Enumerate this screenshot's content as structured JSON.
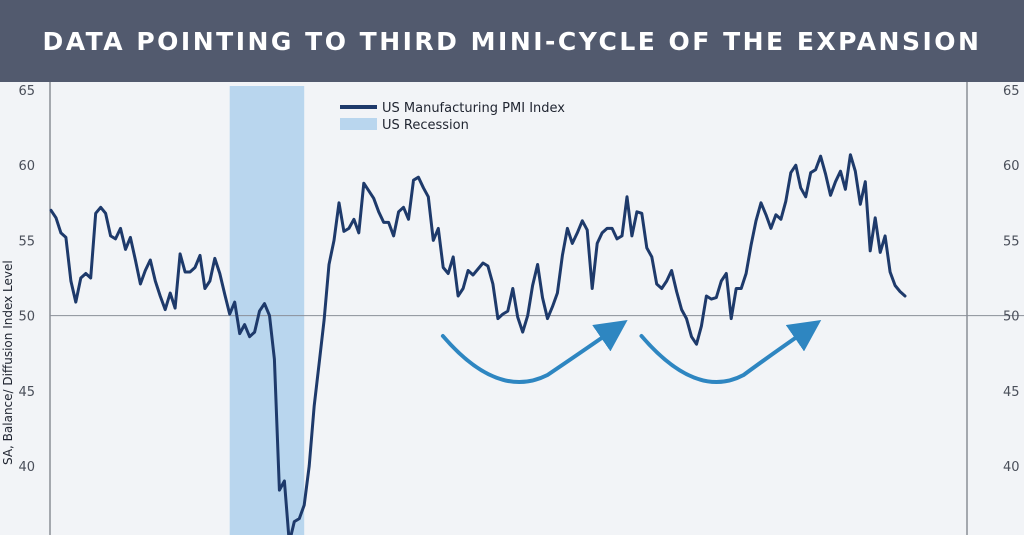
{
  "header": {
    "title": "DATA POINTING TO THIRD MINI-CYCLE OF THE EXPANSION"
  },
  "colors": {
    "header_bg": "#525a6e",
    "pmi_line": "#1e3a6b",
    "recession": "#b9d6ee",
    "arrow": "#2e86c1",
    "axis": "#555b66"
  },
  "chart_data": {
    "type": "line",
    "title": "DATA POINTING TO THIRD MINI-CYCLE OF THE EXPANSION",
    "ylabel": "SA, Balance/ Diffusion Index Level",
    "ylim": [
      35,
      65
    ],
    "y_ticks": [
      "65",
      "60",
      "55",
      "50",
      "45",
      "40"
    ],
    "grid": false,
    "reference_line": 50,
    "legend": [
      "US Manufacturing PMI Index",
      "US Recession"
    ],
    "legend_position": "top-center",
    "series": [
      {
        "name": "US Manufacturing PMI Index",
        "values": [
          57.0,
          56.5,
          55.5,
          55.2,
          52.3,
          50.9,
          52.5,
          52.8,
          52.5,
          56.8,
          57.2,
          56.8,
          55.3,
          55.1,
          55.8,
          54.4,
          55.2,
          53.7,
          52.1,
          53.0,
          53.7,
          52.3,
          51.3,
          50.4,
          51.5,
          50.5,
          54.1,
          52.9,
          52.9,
          53.2,
          54.0,
          51.8,
          52.3,
          53.8,
          52.8,
          51.4,
          50.1,
          50.9,
          48.8,
          49.4,
          48.6,
          48.9,
          50.3,
          50.8,
          50.0,
          47.1,
          38.4,
          39.0,
          34.9,
          36.3,
          36.5,
          37.4,
          40.0,
          44.0,
          46.8,
          49.7,
          53.4,
          55.0,
          57.5,
          55.6,
          55.8,
          56.4,
          55.5,
          58.8,
          58.3,
          57.8,
          56.9,
          56.2,
          56.2,
          55.3,
          56.9,
          57.2,
          56.4,
          59.0,
          59.2,
          58.5,
          57.9,
          55.0,
          55.8,
          53.2,
          52.8,
          53.9,
          51.3,
          51.8,
          53.0,
          52.7,
          53.1,
          53.5,
          53.3,
          52.1,
          49.8,
          50.1,
          50.3,
          51.8,
          49.9,
          48.9,
          50.0,
          52.0,
          53.4,
          51.2,
          49.8,
          50.6,
          51.5,
          54.0,
          55.8,
          54.8,
          55.5,
          56.3,
          55.7,
          51.8,
          54.8,
          55.5,
          55.8,
          55.8,
          55.1,
          55.3,
          57.9,
          55.3,
          56.9,
          56.8,
          54.5,
          53.9,
          52.1,
          51.8,
          52.3,
          53.0,
          51.6,
          50.4,
          49.8,
          48.6,
          48.1,
          49.3,
          51.3,
          51.1,
          51.2,
          52.3,
          52.8,
          49.8,
          51.8,
          51.8,
          52.8,
          54.7,
          56.3,
          57.5,
          56.7,
          55.8,
          56.7,
          56.4,
          57.6,
          59.5,
          60.0,
          58.5,
          57.9,
          59.5,
          59.7,
          60.6,
          59.4,
          58.0,
          58.9,
          59.6,
          58.4,
          60.7,
          59.6,
          57.4,
          58.9,
          54.3,
          56.5,
          54.2,
          55.3,
          52.9,
          52.0,
          51.6,
          51.3
        ]
      }
    ],
    "recession_band": {
      "start_index": 36,
      "end_index": 51,
      "label": "US Recession"
    },
    "annotations": [
      {
        "type": "curved-arrow",
        "from_index": 89,
        "to_index": 113,
        "meaning": "mini-cycle upswing"
      },
      {
        "type": "curved-arrow",
        "from_index": 129,
        "to_index": 152,
        "meaning": "mini-cycle upswing"
      }
    ]
  }
}
